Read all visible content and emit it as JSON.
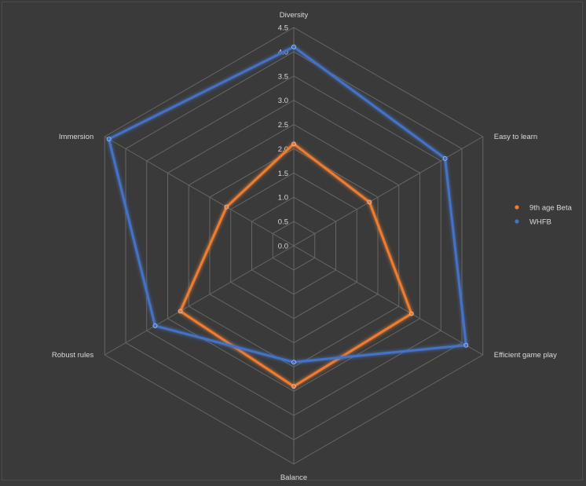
{
  "chart_data": {
    "type": "radar",
    "categories": [
      "Diversity",
      "Easy to learn",
      "Efficient game play",
      "Balance",
      "Robust rules",
      "Immersion"
    ],
    "rmin": 0,
    "rmax": 4.5,
    "tick_step": 0.5,
    "tick_labels": [
      "0.0",
      "0.5",
      "1.0",
      "1.5",
      "2.0",
      "2.5",
      "3.0",
      "3.5",
      "4.0",
      "4.5"
    ],
    "grid": true,
    "legend_position": "right",
    "series": [
      {
        "name": "9th age Beta",
        "color": "#ed7d31",
        "values": [
          2.1,
          1.8,
          2.8,
          2.9,
          2.7,
          1.6
        ]
      },
      {
        "name": "WHFB",
        "color": "#4472c4",
        "values": [
          4.1,
          3.6,
          4.1,
          2.4,
          3.3,
          4.4
        ]
      }
    ]
  }
}
